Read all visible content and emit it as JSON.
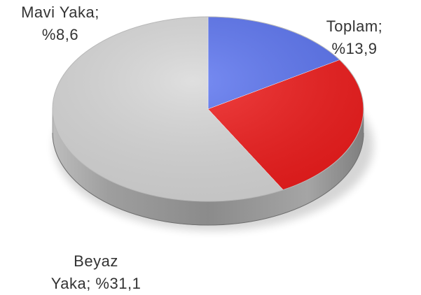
{
  "chart_data": {
    "type": "pie",
    "style": "3d",
    "title": "",
    "slices": [
      {
        "category": "Mavi Yaka",
        "value": 8.6,
        "label_line1": "Mavi Yaka;",
        "label_line2": "%8,6",
        "color": "#5a73f0"
      },
      {
        "category": "Toplam",
        "value": 13.9,
        "label_line1": "Toplam;",
        "label_line2": "%13,9",
        "color": "#ef1a1a"
      },
      {
        "category": "Beyaz Yaka",
        "value": 31.1,
        "label_line1": "Beyaz",
        "label_line2": "Yaka; %31,1",
        "color": "#d8d8d8"
      }
    ],
    "legend": "none"
  }
}
